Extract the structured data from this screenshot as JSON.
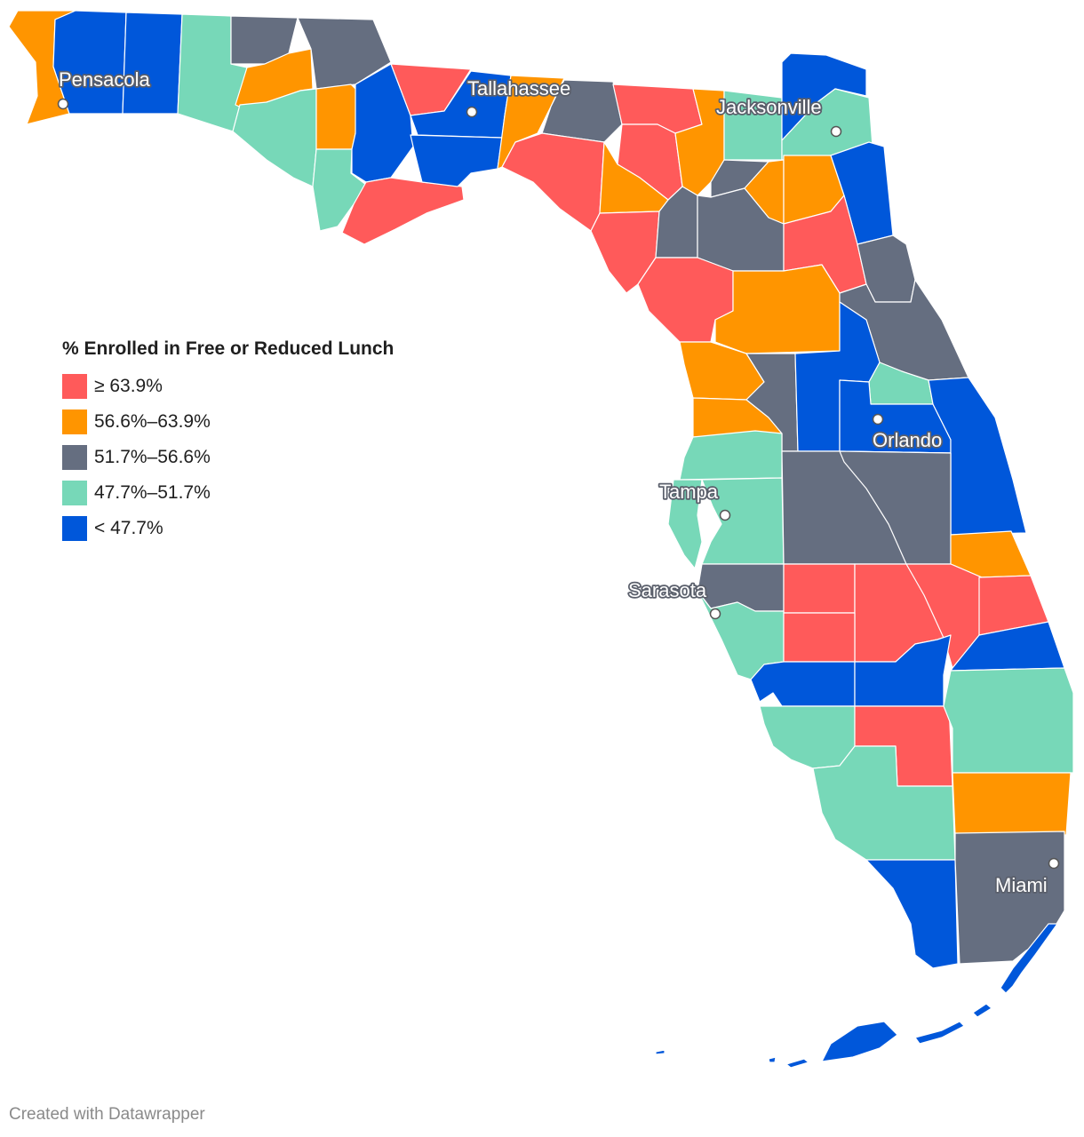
{
  "legend": {
    "title": "% Enrolled in Free or Reduced Lunch",
    "items": [
      {
        "label": "≥ 63.9%",
        "color": "#ff5a5a"
      },
      {
        "label": "56.6%–63.9%",
        "color": "#ff9500"
      },
      {
        "label": "51.7%–56.6%",
        "color": "#656e80"
      },
      {
        "label": "47.7%–51.7%",
        "color": "#77d8b8"
      },
      {
        "label": "< 47.7%",
        "color": "#0057da"
      }
    ]
  },
  "cities": [
    {
      "name": "Pensacola"
    },
    {
      "name": "Tallahassee"
    },
    {
      "name": "Jacksonville"
    },
    {
      "name": "Orlando"
    },
    {
      "name": "Tampa"
    },
    {
      "name": "Sarasota"
    },
    {
      "name": "Miami"
    }
  ],
  "credit": "Created with Datawrapper"
}
